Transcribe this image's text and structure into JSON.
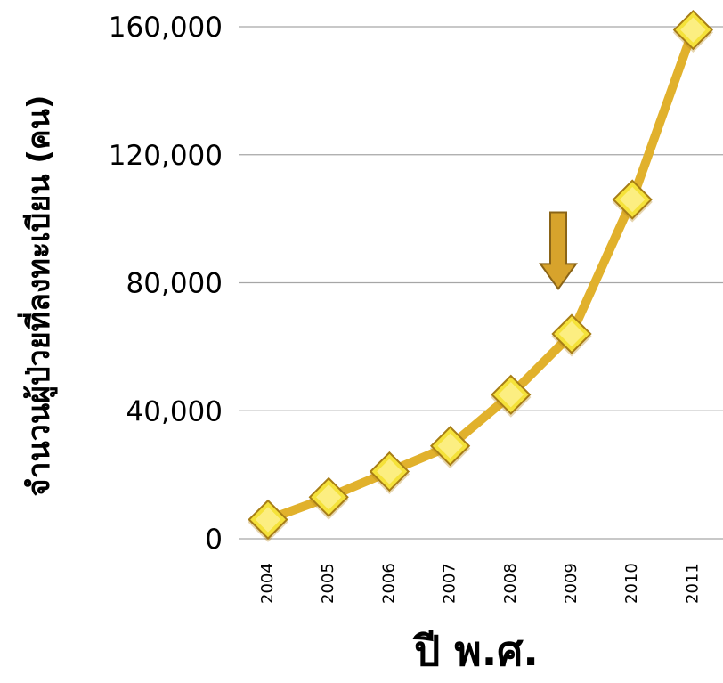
{
  "chart_data": {
    "type": "line",
    "title": "",
    "xlabel": "ปี พ.ศ.",
    "ylabel": "จำนวนผู้ป่วยที่ลงทะเบียน   (คน)",
    "categories": [
      "2004",
      "2005",
      "2006",
      "2007",
      "2008",
      "2009",
      "2010",
      "2011"
    ],
    "series": [
      {
        "values": [
          6000,
          13000,
          21000,
          29000,
          45000,
          64000,
          106000,
          159000
        ]
      }
    ],
    "ylim": [
      0,
      160000
    ],
    "yticks": [
      0,
      40000,
      80000,
      120000,
      160000
    ],
    "ytick_labels": [
      "0",
      "40,000",
      "80,000",
      "120,000",
      "160,000"
    ],
    "grid": true,
    "legend": "none",
    "annotations": [
      {
        "type": "down-arrow",
        "near_category": "2009"
      }
    ],
    "colors": {
      "line": "#e1b12c",
      "marker_fill": "#f5e23a",
      "marker_stroke": "#a77d16",
      "arrow_fill": "#d7a32c",
      "arrow_stroke": "#8a6417",
      "grid": "#a6a6a6",
      "text": "#000000"
    }
  }
}
